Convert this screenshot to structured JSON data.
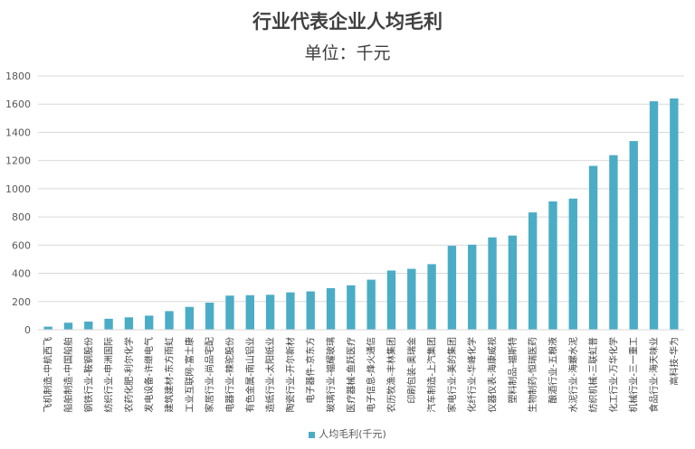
{
  "chart_data": {
    "type": "bar",
    "title": "行业代表企业人均毛利",
    "subtitle": "单位：千元",
    "xlabel": "",
    "ylabel": "",
    "ylim": [
      0,
      1800
    ],
    "yticks": [
      0,
      200,
      400,
      600,
      800,
      1000,
      1200,
      1400,
      1600,
      1800
    ],
    "grid": true,
    "legend_position": "bottom",
    "bar_color": "#4bacc6",
    "categories": [
      "飞机制造-中航西飞",
      "船舶制造-中国船舶",
      "钢铁行业-鞍钢股份",
      "纺织行业-申洲国际",
      "农药化肥-利尔化学",
      "发电设备-许继电气",
      "建筑建材-东方雨虹",
      "工业互联网-富士康",
      "家居行业-尚品宅配",
      "电器行业-辣驼股份",
      "有色金属-南山铝业",
      "造纸行业-太阳纸业",
      "陶瓷行业-开尔新材",
      "电子器件-京东方",
      "玻璃行业-福耀玻璃",
      "医疗器械-鱼跃医疗",
      "电子信息-烽火通信",
      "农历牧渔-丰林集团",
      "印刷包装-奥瑞金",
      "汽车制造-上汽集团",
      "家电行业-美的集团",
      "化纤行业-华峰化学",
      "仪器仪表-海康威视",
      "塑料制品-福斯特",
      "生物制药-恒瑞医药",
      "酿酒行业-五粮液",
      "水泥行业-海螺水泥",
      "纺织机械-三联虹普",
      "化工行业-万华化学",
      "机械行业-三一重工",
      "食品行业-海天味业",
      "高科技-华为"
    ],
    "series": [
      {
        "name": "人均毛利(千元)",
        "values": [
          22,
          50,
          58,
          78,
          88,
          100,
          132,
          162,
          192,
          242,
          245,
          248,
          265,
          272,
          295,
          315,
          355,
          420,
          432,
          465,
          595,
          603,
          655,
          668,
          832,
          910,
          930,
          1162,
          1238,
          1338,
          1620,
          1640
        ]
      }
    ]
  }
}
